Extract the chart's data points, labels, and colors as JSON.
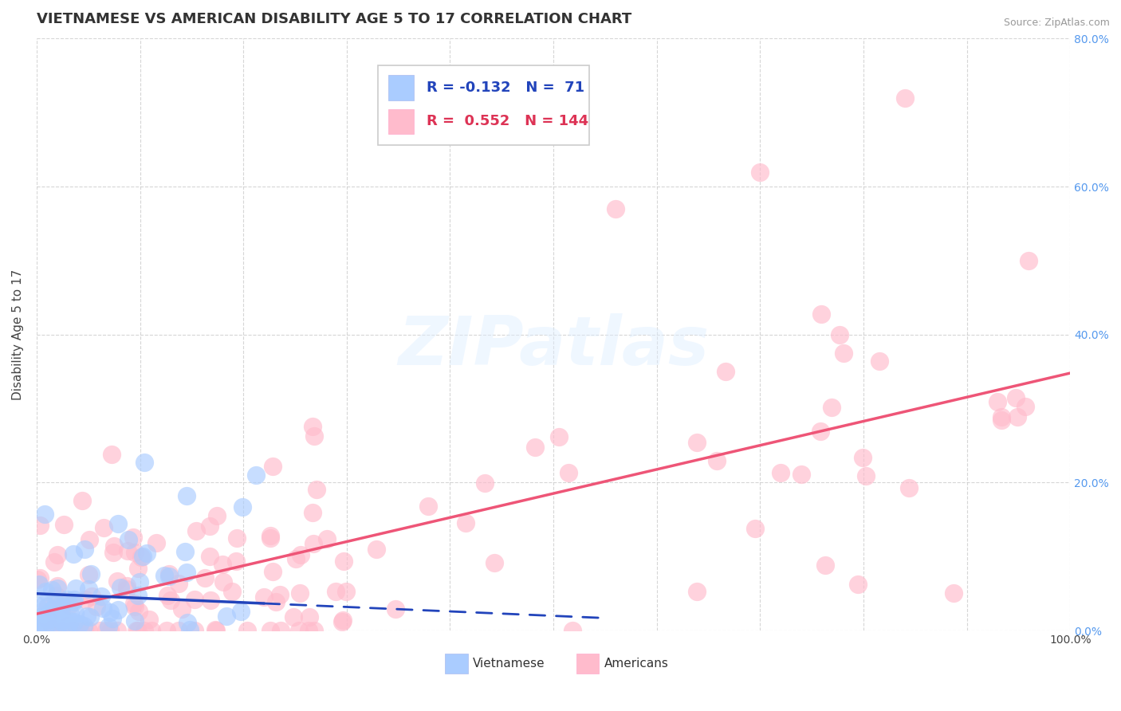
{
  "title": "VIETNAMESE VS AMERICAN DISABILITY AGE 5 TO 17 CORRELATION CHART",
  "source_text": "Source: ZipAtlas.com",
  "ylabel": "Disability Age 5 to 17",
  "xlim": [
    0,
    100
  ],
  "ylim": [
    0,
    80
  ],
  "grid_color": "#cccccc",
  "background_color": "#ffffff",
  "watermark_text": "ZIPatlas",
  "viet_color": "#aaccff",
  "amer_color": "#ffbbcc",
  "viet_line_color": "#2244bb",
  "amer_line_color": "#ee5577",
  "viet_label": "Vietnamese",
  "amer_label": "Americans",
  "viet_R": -0.132,
  "viet_N": 71,
  "amer_R": 0.552,
  "amer_N": 144,
  "title_fontsize": 13,
  "axis_fontsize": 10,
  "legend_fontsize": 13,
  "right_tick_color": "#5599ee"
}
